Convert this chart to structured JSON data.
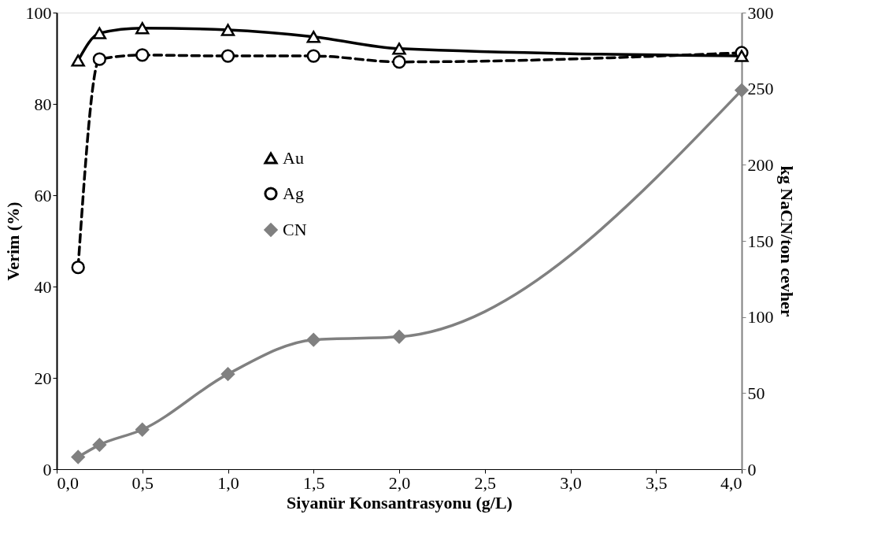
{
  "chart_data": {
    "type": "line",
    "xlabel": "Siyanür Konsantrasyonu (g/L)",
    "ylabel": "Verim (%)",
    "y2label": "kg NaCN/ton cevher",
    "x": [
      0.125,
      0.25,
      0.5,
      1.0,
      1.5,
      2.0,
      4.0
    ],
    "series": [
      {
        "name": "Au",
        "color": "#000000",
        "marker": "triangle",
        "line_style": "solid",
        "values": [
          89.5,
          95.5,
          96.6,
          96.2,
          94.7,
          92.1,
          90.5
        ]
      },
      {
        "name": "Ag",
        "color": "#000000",
        "marker": "circle",
        "line_style": "dashed",
        "values": [
          44.2,
          89.8,
          90.7,
          90.5,
          90.5,
          89.2,
          91.2
        ]
      },
      {
        "name": "CN",
        "color": "#808080",
        "marker": "diamond",
        "line_style": "solid",
        "axis": "y2",
        "values": [
          8,
          16,
          26,
          62.5,
          85,
          87,
          249
        ]
      }
    ],
    "xlim": [
      0,
      4.0
    ],
    "xticks": [
      {
        "value": 0,
        "label": "0,0"
      },
      {
        "value": 0.5,
        "label": "0,5"
      },
      {
        "value": 1.0,
        "label": "1,0"
      },
      {
        "value": 1.5,
        "label": "1,5"
      },
      {
        "value": 2.0,
        "label": "2,0"
      },
      {
        "value": 2.5,
        "label": "2,5"
      },
      {
        "value": 3.0,
        "label": "3,0"
      },
      {
        "value": 3.5,
        "label": "3,5"
      },
      {
        "value": 4.0,
        "label": "4,0"
      }
    ],
    "ylim": [
      0,
      100
    ],
    "yticks": [
      0,
      20,
      40,
      60,
      80,
      100
    ],
    "y2lim": [
      0,
      300
    ],
    "y2ticks": [
      0,
      50,
      100,
      150,
      200,
      250,
      300
    ],
    "grid": false,
    "legend": "center left"
  }
}
